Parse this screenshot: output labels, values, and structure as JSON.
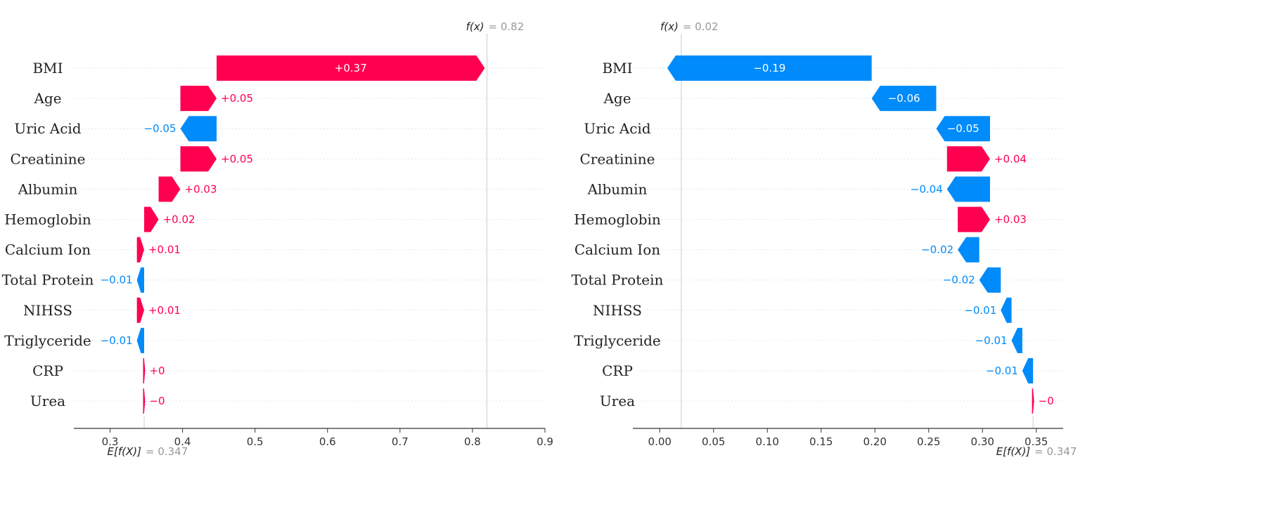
{
  "chart_data": [
    {
      "type": "waterfall",
      "base_value": 0.347,
      "base_label": "E[f(X)]",
      "base_text": "= 0.347",
      "output_value": 0.82,
      "output_label": "f(x)",
      "output_text": "= 0.82",
      "xlim": [
        0.25,
        0.9
      ],
      "xticks": [
        0.3,
        0.4,
        0.5,
        0.6,
        0.7,
        0.8,
        0.9
      ],
      "xtick_labels": [
        "0.3",
        "0.4",
        "0.5",
        "0.6",
        "0.7",
        "0.8",
        "0.9"
      ],
      "grid": false,
      "features": [
        {
          "name": "BMI",
          "value": 0.37,
          "label": "+0.37"
        },
        {
          "name": "Age",
          "value": 0.05,
          "label": "+0.05"
        },
        {
          "name": "Uric Acid",
          "value": -0.05,
          "label": "−0.05"
        },
        {
          "name": "Creatinine",
          "value": 0.05,
          "label": "+0.05"
        },
        {
          "name": "Albumin",
          "value": 0.03,
          "label": "+0.03"
        },
        {
          "name": "Hemoglobin",
          "value": 0.02,
          "label": "+0.02"
        },
        {
          "name": "Calcium Ion",
          "value": 0.01,
          "label": "+0.01"
        },
        {
          "name": "Total Protein",
          "value": -0.01,
          "label": "−0.01"
        },
        {
          "name": "NIHSS",
          "value": 0.01,
          "label": "+0.01"
        },
        {
          "name": "Triglyceride",
          "value": -0.01,
          "label": "−0.01"
        },
        {
          "name": "CRP",
          "value": 0.0,
          "label": "+0"
        },
        {
          "name": "Urea",
          "value": 0.0,
          "label": "−0"
        }
      ]
    },
    {
      "type": "waterfall",
      "base_value": 0.347,
      "base_label": "E[f(X)]",
      "base_text": "= 0.347",
      "output_value": 0.02,
      "output_label": "f(x)",
      "output_text": "= 0.02",
      "xlim": [
        -0.025,
        0.375
      ],
      "xticks": [
        0.0,
        0.05,
        0.1,
        0.15,
        0.2,
        0.25,
        0.3,
        0.35
      ],
      "xtick_labels": [
        "0.00",
        "0.05",
        "0.10",
        "0.15",
        "0.20",
        "0.25",
        "0.30",
        "0.35"
      ],
      "grid": false,
      "features": [
        {
          "name": "BMI",
          "value": -0.19,
          "label": "−0.19"
        },
        {
          "name": "Age",
          "value": -0.06,
          "label": "−0.06"
        },
        {
          "name": "Uric Acid",
          "value": -0.05,
          "label": "−0.05"
        },
        {
          "name": "Creatinine",
          "value": 0.04,
          "label": "+0.04"
        },
        {
          "name": "Albumin",
          "value": -0.04,
          "label": "−0.04"
        },
        {
          "name": "Hemoglobin",
          "value": 0.03,
          "label": "+0.03"
        },
        {
          "name": "Calcium Ion",
          "value": -0.02,
          "label": "−0.02"
        },
        {
          "name": "Total Protein",
          "value": -0.02,
          "label": "−0.02"
        },
        {
          "name": "NIHSS",
          "value": -0.01,
          "label": "−0.01"
        },
        {
          "name": "Triglyceride",
          "value": -0.01,
          "label": "−0.01"
        },
        {
          "name": "CRP",
          "value": -0.01,
          "label": "−0.01"
        },
        {
          "name": "Urea",
          "value": 0.0,
          "label": "−0"
        }
      ]
    }
  ],
  "colors": {
    "positive": "#ff0051",
    "negative": "#008bfb",
    "axis": "#333333",
    "guide": "#cccccc",
    "row_line": "#e6e6e6"
  }
}
